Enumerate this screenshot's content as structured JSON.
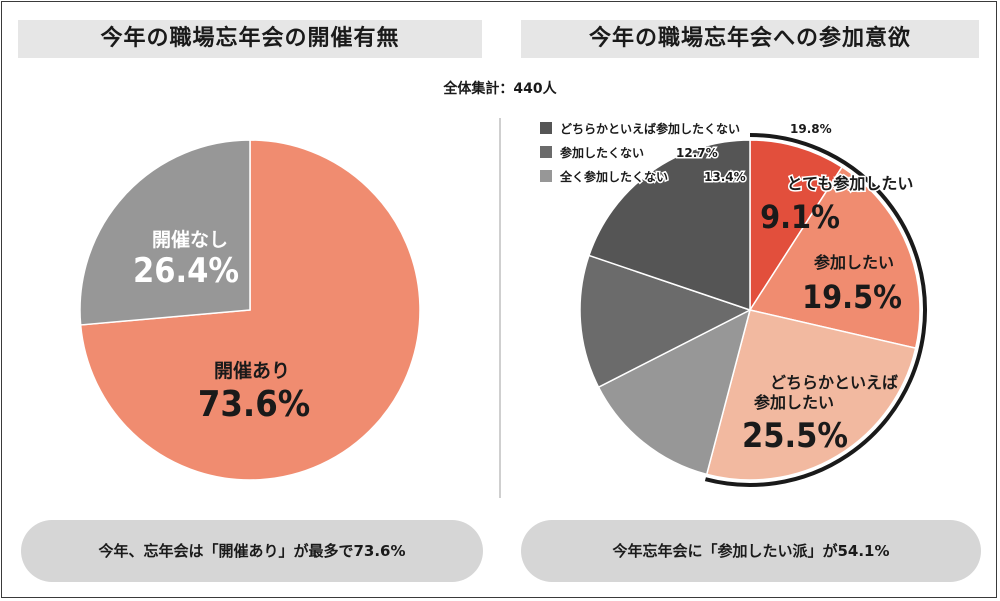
{
  "left": {
    "title": "今年の職場忘年会の開催有無",
    "caption": "今年、忘年会は「開催あり」が最多で73.6%"
  },
  "right": {
    "title": "今年の職場忘年会への参加意欲",
    "caption": "今年忘年会に「参加したい派」が54.1%"
  },
  "total_label": "全体集計：440人",
  "colors": {
    "held": "#f08c70",
    "not_held": "#979797",
    "very_want": "#e24f3c",
    "want": "#f08c70",
    "somewhat_want": "#f2b9a0",
    "somewhat_not": "#555555",
    "not_want": "#6b6b6b",
    "not_at_all": "#979797",
    "outline": "#1a1a1a"
  },
  "chart_data": [
    {
      "type": "pie",
      "title": "今年の職場忘年会の開催有無",
      "slices": [
        {
          "label": "開催あり",
          "value": 73.6,
          "display": "73.6%",
          "color_key": "held"
        },
        {
          "label": "開催なし",
          "value": 26.4,
          "display": "26.4%",
          "color_key": "not_held"
        }
      ]
    },
    {
      "type": "pie",
      "title": "今年の職場忘年会への参加意欲",
      "slices": [
        {
          "label": "とても参加したい",
          "value": 9.1,
          "display": "9.1%",
          "color_key": "very_want"
        },
        {
          "label": "参加したい",
          "value": 19.5,
          "display": "19.5%",
          "color_key": "want"
        },
        {
          "label": "どちらかといえば参加したい",
          "value": 25.5,
          "display": "25.5%",
          "color_key": "somewhat_want"
        },
        {
          "label": "全く参加したくない",
          "value": 13.4,
          "display": "13.4%",
          "color_key": "not_at_all"
        },
        {
          "label": "参加したくない",
          "value": 12.7,
          "display": "12.7%",
          "color_key": "not_want"
        },
        {
          "label": "どちらかといえば参加したくない",
          "value": 19.8,
          "display": "19.8%",
          "color_key": "somewhat_not"
        }
      ],
      "legend": [
        {
          "label": "どちらかといえば参加したくない",
          "display": "19.8%",
          "color_key": "somewhat_not"
        },
        {
          "label": "参加したくない",
          "display": "12.7%",
          "color_key": "not_want"
        },
        {
          "label": "全く参加したくない",
          "display": "13.4%",
          "color_key": "not_at_all"
        }
      ],
      "legend_position": "top-left"
    }
  ]
}
